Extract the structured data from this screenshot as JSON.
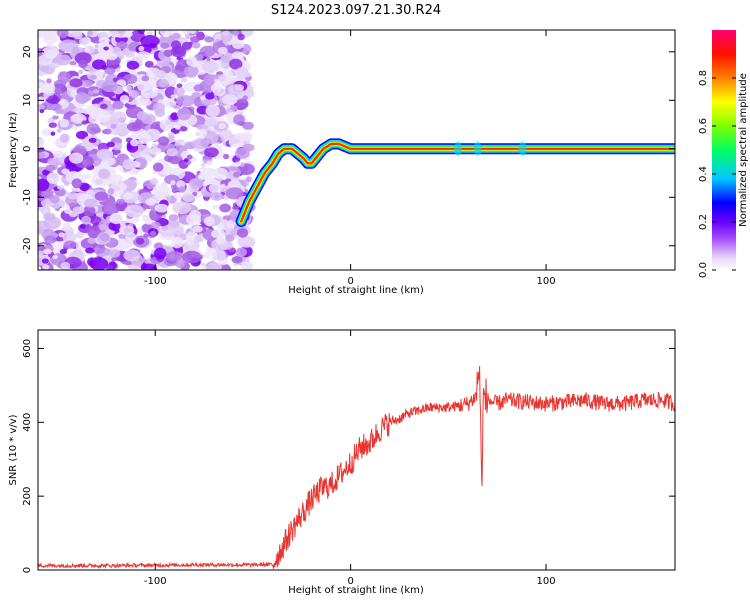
{
  "title": "S124.2023.097.21.30.R24",
  "chart_data": [
    {
      "type": "heatmap",
      "xlabel": "Height of straight line (km)",
      "ylabel": "Frequency (Hz)",
      "xlim": [
        -160,
        166
      ],
      "ylim": [
        -25,
        24.5
      ],
      "xticks": [
        -100,
        0,
        100
      ],
      "yticks": [
        -20,
        -10,
        0,
        10,
        20
      ],
      "noise_region_x": [
        -160,
        -52
      ],
      "ridge": {
        "x": [
          -56,
          -52,
          -48,
          -44,
          -40,
          -37,
          -34,
          -30,
          -27,
          -24,
          -22,
          -20,
          -18,
          -16,
          -14,
          -12,
          -10,
          -6,
          0,
          20,
          60,
          100,
          166
        ],
        "y": [
          -15,
          -11,
          -8,
          -5,
          -3,
          -1,
          0,
          0,
          -1,
          -2,
          -3,
          -3,
          -2,
          -1,
          0,
          0.5,
          1,
          1,
          0,
          0,
          0,
          0,
          0
        ]
      },
      "colorbar": {
        "label": "Normalized spectral amplitude",
        "range": [
          0,
          1
        ],
        "ticks": [
          0.0,
          0.2,
          0.4,
          0.6,
          0.8
        ],
        "tick_labels": [
          "0.0",
          "0.2",
          "0.4",
          "0.6",
          "0.8"
        ],
        "colors": [
          "#ffffff",
          "#d6bdf0",
          "#8a00ff",
          "#0000ff",
          "#00ffff",
          "#00ff00",
          "#ffff00",
          "#ff8000",
          "#ff0000",
          "#ff0080"
        ]
      }
    },
    {
      "type": "line",
      "xlabel": "Height of straight line (km)",
      "ylabel": "SNR (10 * v/v)",
      "xlim": [
        -160,
        166
      ],
      "ylim": [
        0,
        650
      ],
      "xticks": [
        -100,
        0,
        100
      ],
      "yticks": [
        0,
        200,
        400,
        600
      ],
      "color": "#e8352f",
      "series": [
        {
          "x": [
            -160,
            -120,
            -80,
            -50,
            -40,
            -35,
            -30,
            -25,
            -20,
            -15,
            -10,
            -5,
            0,
            5,
            10,
            15,
            20,
            25,
            30,
            40,
            50,
            60,
            64,
            66,
            67,
            68,
            70,
            75,
            80,
            90,
            100,
            110,
            120,
            130,
            140,
            150,
            160,
            166
          ],
          "y": [
            12,
            12,
            14,
            14,
            15,
            60,
            110,
            150,
            190,
            220,
            230,
            260,
            290,
            330,
            345,
            380,
            400,
            410,
            425,
            440,
            440,
            450,
            470,
            550,
            220,
            470,
            460,
            450,
            460,
            455,
            450,
            455,
            460,
            450,
            450,
            460,
            460,
            450
          ]
        }
      ]
    }
  ]
}
